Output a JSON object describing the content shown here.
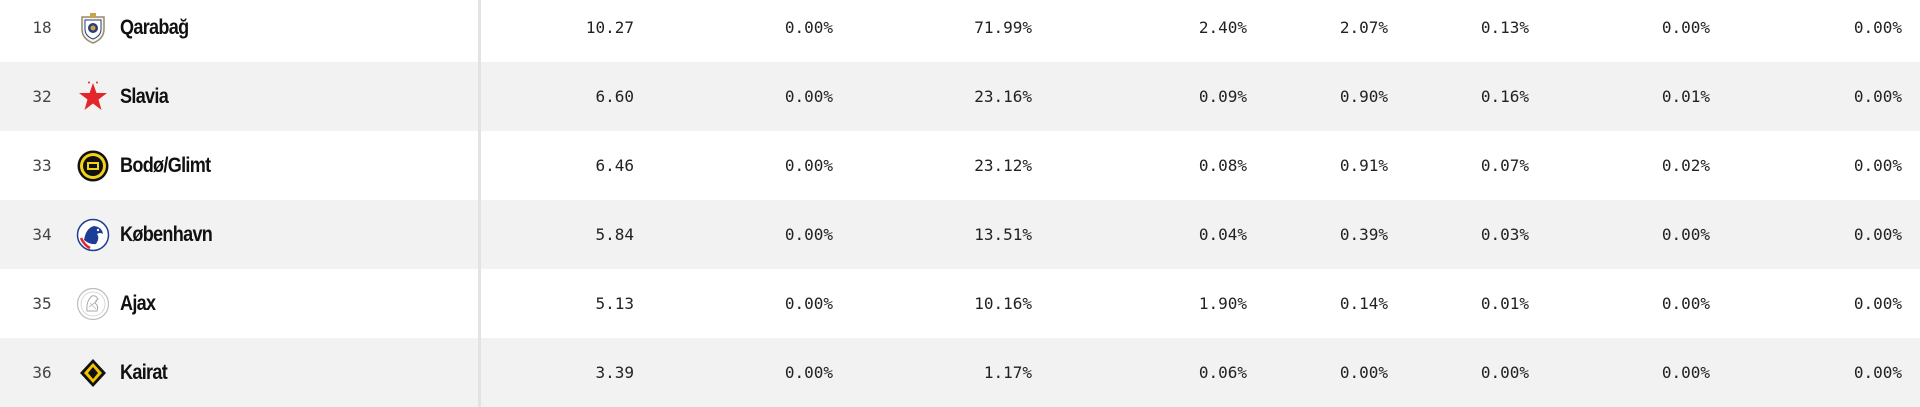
{
  "rows": [
    {
      "rank": "18",
      "team": "Qarabağ",
      "crest": "qarabag-crest-icon",
      "values": [
        "10.27",
        "0.00%",
        "71.99%",
        "2.40%",
        "2.07%",
        "0.13%",
        "0.00%",
        "0.00%"
      ]
    },
    {
      "rank": "32",
      "team": "Slavia",
      "crest": "slavia-star-crest-icon",
      "values": [
        "6.60",
        "0.00%",
        "23.16%",
        "0.09%",
        "0.90%",
        "0.16%",
        "0.01%",
        "0.00%"
      ]
    },
    {
      "rank": "33",
      "team": "Bodø/Glimt",
      "crest": "bodo-glimt-crest-icon",
      "values": [
        "6.46",
        "0.00%",
        "23.12%",
        "0.08%",
        "0.91%",
        "0.07%",
        "0.02%",
        "0.00%"
      ]
    },
    {
      "rank": "34",
      "team": "København",
      "crest": "kobenhavn-crest-icon",
      "values": [
        "5.84",
        "0.00%",
        "13.51%",
        "0.04%",
        "0.39%",
        "0.03%",
        "0.00%",
        "0.00%"
      ]
    },
    {
      "rank": "35",
      "team": "Ajax",
      "crest": "ajax-crest-icon",
      "values": [
        "5.13",
        "0.00%",
        "10.16%",
        "1.90%",
        "0.14%",
        "0.01%",
        "0.00%",
        "0.00%"
      ]
    },
    {
      "rank": "36",
      "team": "Kairat",
      "crest": "kairat-crest-icon",
      "values": [
        "3.39",
        "0.00%",
        "1.17%",
        "0.06%",
        "0.00%",
        "0.00%",
        "0.00%",
        "0.00%"
      ]
    }
  ],
  "colors": {
    "row_alt": "#f2f2f2",
    "row_base": "#ffffff",
    "divider": "#e3e3e3",
    "slavia_red": "#e4262b",
    "bodo_yellow": "#f3d217",
    "kobenhavn_blue": "#1d3e96",
    "kairat_yellow": "#f5c400"
  }
}
